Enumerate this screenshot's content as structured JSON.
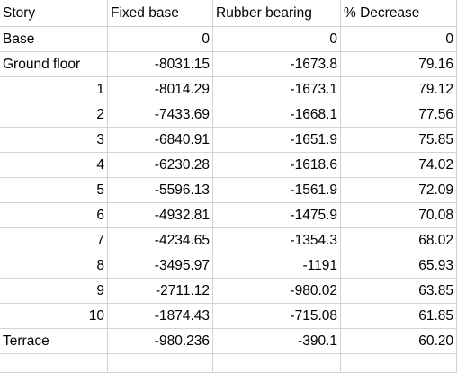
{
  "table": {
    "headers": [
      "Story",
      "Fixed base",
      "Rubber bearing",
      "% Decrease"
    ],
    "rows": [
      {
        "story": "Base",
        "story_numeric": false,
        "fixed": "0",
        "rubber": "0",
        "decrease": "0"
      },
      {
        "story": "Ground floor",
        "story_numeric": false,
        "fixed": "-8031.15",
        "rubber": "-1673.8",
        "decrease": "79.16"
      },
      {
        "story": "1",
        "story_numeric": true,
        "fixed": "-8014.29",
        "rubber": "-1673.1",
        "decrease": "79.12"
      },
      {
        "story": "2",
        "story_numeric": true,
        "fixed": "-7433.69",
        "rubber": "-1668.1",
        "decrease": "77.56"
      },
      {
        "story": "3",
        "story_numeric": true,
        "fixed": "-6840.91",
        "rubber": "-1651.9",
        "decrease": "75.85"
      },
      {
        "story": "4",
        "story_numeric": true,
        "fixed": "-6230.28",
        "rubber": "-1618.6",
        "decrease": "74.02"
      },
      {
        "story": "5",
        "story_numeric": true,
        "fixed": "-5596.13",
        "rubber": "-1561.9",
        "decrease": "72.09"
      },
      {
        "story": "6",
        "story_numeric": true,
        "fixed": "-4932.81",
        "rubber": "-1475.9",
        "decrease": "70.08"
      },
      {
        "story": "7",
        "story_numeric": true,
        "fixed": "-4234.65",
        "rubber": "-1354.3",
        "decrease": "68.02"
      },
      {
        "story": "8",
        "story_numeric": true,
        "fixed": "-3495.97",
        "rubber": "-1191",
        "decrease": "65.93"
      },
      {
        "story": "9",
        "story_numeric": true,
        "fixed": "-2711.12",
        "rubber": "-980.02",
        "decrease": "63.85"
      },
      {
        "story": "10",
        "story_numeric": true,
        "fixed": "-1874.43",
        "rubber": "-715.08",
        "decrease": "61.85"
      },
      {
        "story": "Terrace",
        "story_numeric": false,
        "fixed": "-980.236",
        "rubber": "-390.1",
        "decrease": "60.20"
      }
    ]
  }
}
